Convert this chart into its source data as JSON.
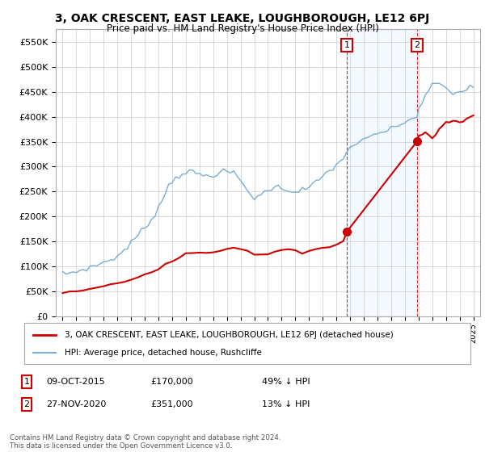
{
  "title": "3, OAK CRESCENT, EAST LEAKE, LOUGHBOROUGH, LE12 6PJ",
  "subtitle": "Price paid vs. HM Land Registry's House Price Index (HPI)",
  "hpi_color": "#7aadd4",
  "price_color": "#cc0000",
  "background_color": "#ffffff",
  "grid_color": "#cccccc",
  "annotation_bg": "#ddeeff",
  "ylim": [
    0,
    575000
  ],
  "yticks": [
    0,
    50000,
    100000,
    150000,
    200000,
    250000,
    300000,
    350000,
    400000,
    450000,
    500000,
    550000
  ],
  "sale1_date": 2015.77,
  "sale1_price": 170000,
  "sale2_date": 2020.9,
  "sale2_price": 351000,
  "legend_label_price": "3, OAK CRESCENT, EAST LEAKE, LOUGHBOROUGH, LE12 6PJ (detached house)",
  "legend_label_hpi": "HPI: Average price, detached house, Rushcliffe",
  "footnote": "Contains HM Land Registry data © Crown copyright and database right 2024.\nThis data is licensed under the Open Government Licence v3.0.",
  "xmin": 1994.5,
  "xmax": 2025.5,
  "hpi_data_years": [
    1995.0,
    1995.25,
    1995.5,
    1995.75,
    1996.0,
    1996.25,
    1996.5,
    1996.75,
    1997.0,
    1997.25,
    1997.5,
    1997.75,
    1998.0,
    1998.25,
    1998.5,
    1998.75,
    1999.0,
    1999.25,
    1999.5,
    1999.75,
    2000.0,
    2000.25,
    2000.5,
    2000.75,
    2001.0,
    2001.25,
    2001.5,
    2001.75,
    2002.0,
    2002.25,
    2002.5,
    2002.75,
    2003.0,
    2003.25,
    2003.5,
    2003.75,
    2004.0,
    2004.25,
    2004.5,
    2004.75,
    2005.0,
    2005.25,
    2005.5,
    2005.75,
    2006.0,
    2006.25,
    2006.5,
    2006.75,
    2007.0,
    2007.25,
    2007.5,
    2007.75,
    2008.0,
    2008.25,
    2008.5,
    2008.75,
    2009.0,
    2009.25,
    2009.5,
    2009.75,
    2010.0,
    2010.25,
    2010.5,
    2010.75,
    2011.0,
    2011.25,
    2011.5,
    2011.75,
    2012.0,
    2012.25,
    2012.5,
    2012.75,
    2013.0,
    2013.25,
    2013.5,
    2013.75,
    2014.0,
    2014.25,
    2014.5,
    2014.75,
    2015.0,
    2015.25,
    2015.5,
    2015.77,
    2016.0,
    2016.25,
    2016.5,
    2016.75,
    2017.0,
    2017.25,
    2017.5,
    2017.75,
    2018.0,
    2018.25,
    2018.5,
    2018.75,
    2019.0,
    2019.25,
    2019.5,
    2019.75,
    2020.0,
    2020.25,
    2020.5,
    2020.9,
    2021.0,
    2021.25,
    2021.5,
    2021.75,
    2022.0,
    2022.25,
    2022.5,
    2022.75,
    2023.0,
    2023.25,
    2023.5,
    2023.75,
    2024.0,
    2024.25,
    2024.5,
    2024.75,
    2025.0
  ],
  "hpi_data_vals": [
    85000,
    86000,
    87000,
    88000,
    90000,
    92000,
    94000,
    96000,
    98000,
    100000,
    103000,
    106000,
    108000,
    111000,
    114000,
    117000,
    120000,
    126000,
    133000,
    140000,
    147000,
    155000,
    163000,
    170000,
    177000,
    186000,
    196000,
    207000,
    218000,
    232000,
    248000,
    262000,
    272000,
    278000,
    283000,
    287000,
    289000,
    289000,
    288000,
    287000,
    284000,
    282000,
    282000,
    283000,
    284000,
    287000,
    288000,
    289000,
    290000,
    289000,
    286000,
    280000,
    272000,
    262000,
    252000,
    244000,
    238000,
    240000,
    244000,
    248000,
    253000,
    258000,
    260000,
    258000,
    256000,
    255000,
    254000,
    252000,
    250000,
    252000,
    254000,
    255000,
    258000,
    262000,
    268000,
    274000,
    280000,
    287000,
    293000,
    298000,
    303000,
    308000,
    314000,
    333000,
    340000,
    344000,
    346000,
    348000,
    352000,
    356000,
    360000,
    363000,
    366000,
    369000,
    371000,
    372000,
    374000,
    378000,
    382000,
    386000,
    390000,
    392000,
    395000,
    403000,
    415000,
    428000,
    440000,
    452000,
    462000,
    468000,
    468000,
    462000,
    455000,
    450000,
    448000,
    448000,
    450000,
    452000,
    455000,
    458000,
    460000
  ],
  "price_data_years": [
    1995.0,
    1995.5,
    1996.0,
    1996.5,
    1997.0,
    1997.5,
    1998.0,
    1998.5,
    1999.0,
    1999.5,
    2000.0,
    2000.5,
    2001.0,
    2001.5,
    2002.0,
    2002.5,
    2003.0,
    2003.5,
    2004.0,
    2004.5,
    2005.0,
    2005.5,
    2006.0,
    2006.5,
    2007.0,
    2007.5,
    2008.0,
    2008.5,
    2009.0,
    2009.5,
    2010.0,
    2010.5,
    2011.0,
    2011.5,
    2012.0,
    2012.5,
    2013.0,
    2013.5,
    2014.0,
    2014.5,
    2015.0,
    2015.5,
    2015.77,
    2020.9,
    2021.0,
    2021.25,
    2021.5,
    2021.75,
    2022.0,
    2022.25,
    2022.5,
    2022.75,
    2023.0,
    2023.25,
    2023.5,
    2023.75,
    2024.0,
    2024.25,
    2024.5,
    2024.75,
    2025.0
  ],
  "price_data_vals": [
    48000,
    49000,
    50000,
    52000,
    54000,
    57000,
    60000,
    63000,
    66000,
    70000,
    74000,
    79000,
    84000,
    90000,
    97000,
    105000,
    112000,
    120000,
    126000,
    128000,
    127000,
    128000,
    130000,
    133000,
    136000,
    138000,
    136000,
    132000,
    126000,
    124000,
    127000,
    130000,
    132000,
    133000,
    130000,
    128000,
    130000,
    133000,
    136000,
    140000,
    143000,
    148000,
    170000,
    351000,
    360000,
    365000,
    368000,
    365000,
    358000,
    365000,
    375000,
    382000,
    388000,
    390000,
    392000,
    390000,
    388000,
    392000,
    395000,
    400000,
    402000
  ]
}
